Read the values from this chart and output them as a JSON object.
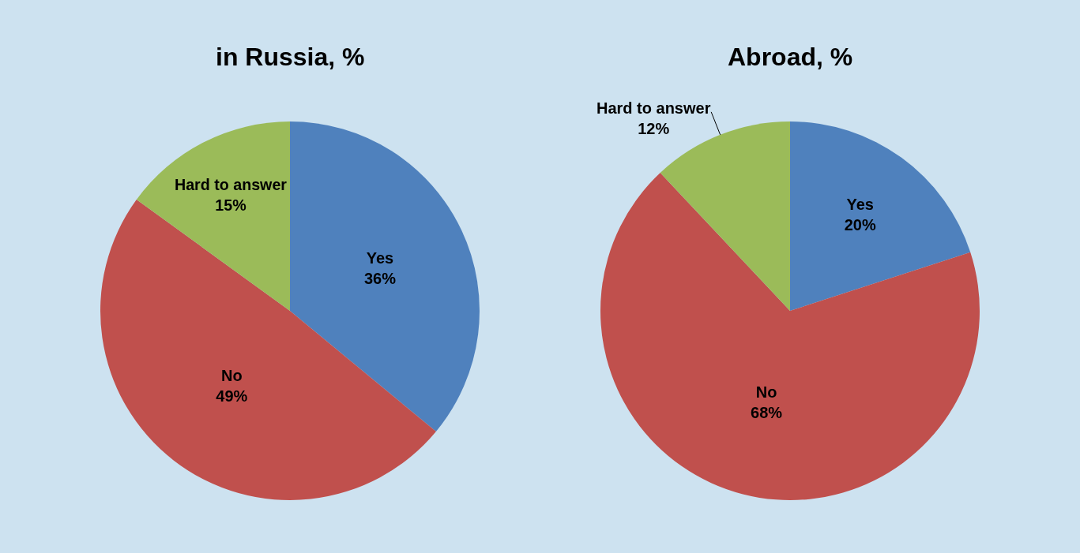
{
  "chart_data": [
    {
      "type": "pie",
      "title": "in Russia, %",
      "categories": [
        "Yes",
        "No",
        "Hard to answer"
      ],
      "values": [
        36,
        49,
        15
      ],
      "value_labels": [
        "36%",
        "49%",
        "15%"
      ],
      "colors": [
        "#4f81bd",
        "#c0504d",
        "#9bbb59"
      ]
    },
    {
      "type": "pie",
      "title": "Abroad, %",
      "categories": [
        "Yes",
        "No",
        "Hard to answer"
      ],
      "values": [
        20,
        68,
        12
      ],
      "value_labels": [
        "20%",
        "68%",
        "12%"
      ],
      "colors": [
        "#4f81bd",
        "#c0504d",
        "#9bbb59"
      ]
    }
  ]
}
